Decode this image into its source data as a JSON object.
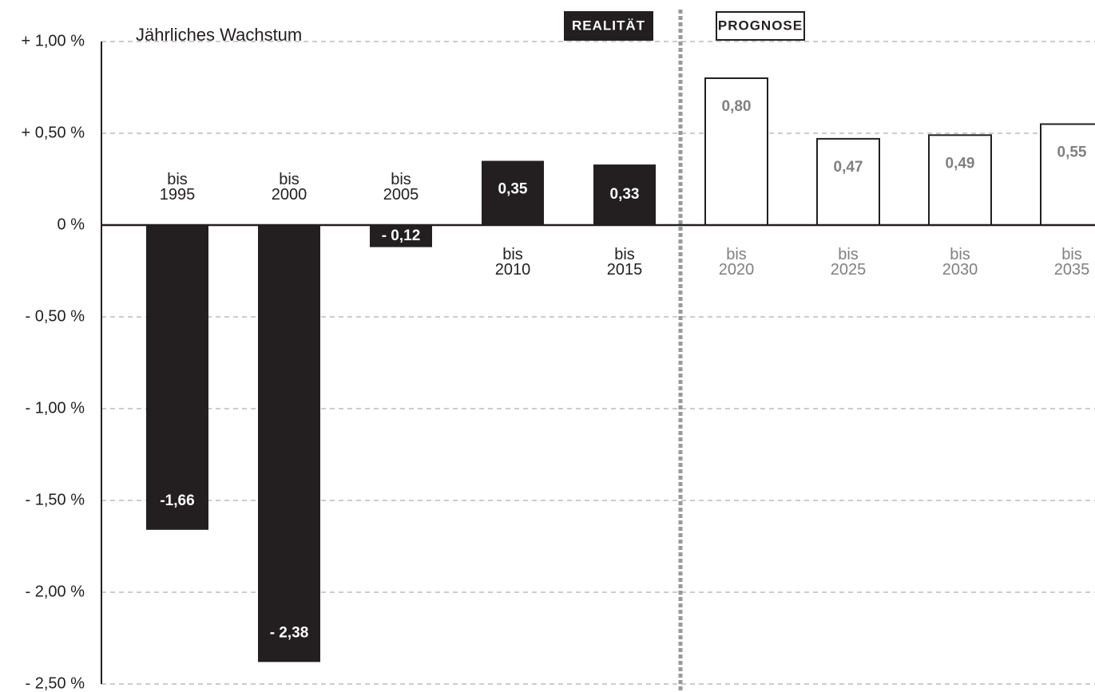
{
  "chart_data": {
    "type": "bar",
    "y_label": "Jährliches Wachstum",
    "categories": [
      "bis 1995",
      "bis 2000",
      "bis 2005",
      "bis 2010",
      "bis 2015",
      "bis 2020",
      "bis 2025",
      "bis 2030",
      "bis 2035"
    ],
    "series": [
      {
        "name": "REALITÄT",
        "color": "#231f20",
        "label_color": "#ffffff",
        "category_color": "#231f20",
        "values": [
          -1.66,
          -2.38,
          -0.12,
          0.35,
          0.33,
          null,
          null,
          null,
          null
        ],
        "value_labels": [
          "-1,66",
          "- 2,38",
          "- 0,12",
          "0,35",
          "0,33",
          null,
          null,
          null,
          null
        ]
      },
      {
        "name": "PROGNOSE",
        "color": "#ffffff",
        "label_color": "#808080",
        "category_color": "#808080",
        "values": [
          null,
          null,
          null,
          null,
          null,
          0.8,
          0.47,
          0.49,
          0.55
        ],
        "value_labels": [
          null,
          null,
          null,
          null,
          null,
          "0,80",
          "0,47",
          "0,49",
          "0,55"
        ]
      }
    ],
    "ylim": [
      -2.5,
      1.0
    ],
    "yticks": [
      {
        "value": 1.0,
        "label": "+ 1,00 %"
      },
      {
        "value": 0.5,
        "label": "+ 0,50 %"
      },
      {
        "value": 0,
        "label": "0 %"
      },
      {
        "value": -0.5,
        "label": "- 0,50 %"
      },
      {
        "value": -1.0,
        "label": "- 1,00 %"
      },
      {
        "value": -1.5,
        "label": "- 1,50 %"
      },
      {
        "value": -2.0,
        "label": "- 2,00 %"
      },
      {
        "value": -2.5,
        "label": "- 2,50 %"
      }
    ],
    "grid": true
  }
}
